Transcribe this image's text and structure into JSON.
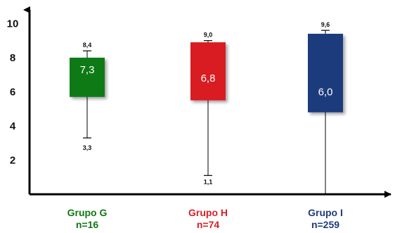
{
  "chart_data": {
    "type": "box",
    "title": "",
    "xlabel": "",
    "ylabel": "",
    "ylim": [
      0,
      10.8
    ],
    "yticks": [
      2,
      4,
      6,
      8,
      10
    ],
    "grid": false,
    "groups": [
      {
        "name": "Grupo G",
        "n_label": "n=16",
        "color": "#0e7a14",
        "label_color": "#0e7a14",
        "whisker_low": 3.3,
        "box_low": 5.7,
        "box_high": 8.0,
        "whisker_high": 8.4,
        "median": 7.3,
        "low_label": "3,3",
        "high_label": "8,4",
        "center_label": "7,3"
      },
      {
        "name": "Grupo H",
        "n_label": "n=74",
        "color": "#d81f22",
        "label_color": "#d81f22",
        "whisker_low": 1.1,
        "box_low": 5.5,
        "box_high": 8.9,
        "whisker_high": 9.0,
        "median": 6.8,
        "low_label": "1,1",
        "high_label": "9,0",
        "center_label": "6,8"
      },
      {
        "name": "Grupo I",
        "n_label": "n=259",
        "color": "#1f3b7c",
        "label_color": "#1f3b7c",
        "whisker_low": 0.0,
        "box_low": 4.8,
        "box_high": 9.4,
        "whisker_high": 9.6,
        "median": 6.0,
        "low_label": "",
        "high_label": "9,6",
        "center_label": "6,0"
      }
    ]
  }
}
